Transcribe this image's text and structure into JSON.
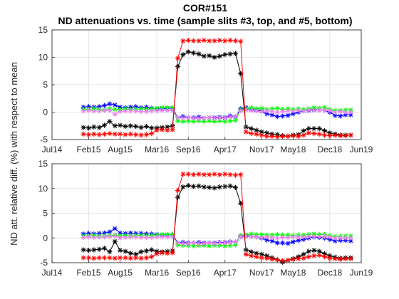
{
  "figure": {
    "title_line1": "COR#151",
    "title_line2": "ND attenuations vs. time (sample slits #3, top, and #5, bottom)",
    "ylabel": "ND att. relative diff. (%) with respect to mean"
  },
  "chart_data": [
    {
      "type": "line",
      "panel": "top",
      "x_ticks": [
        "Jul14",
        "Feb15",
        "Aug15",
        "Mar16",
        "Sep16",
        "Apr17",
        "Nov17",
        "May18",
        "Dec18",
        "Jun19"
      ],
      "xlim": [
        "2014-07",
        "2019-06"
      ],
      "ylim": [
        -5,
        15
      ],
      "y_ticks": [
        -5,
        0,
        5,
        10,
        15
      ],
      "grid": true,
      "marker": "asterisk",
      "x": [
        "2015-01",
        "2015-02",
        "2015-03",
        "2015-04",
        "2015-05",
        "2015-06",
        "2015-07",
        "2015-08",
        "2015-09",
        "2015-10",
        "2015-11",
        "2015-12",
        "2016-01",
        "2016-02",
        "2016-03",
        "2016-04",
        "2016-05",
        "2016-06",
        "2016-07",
        "2016-08",
        "2016-09",
        "2016-10",
        "2016-11",
        "2016-12",
        "2017-01",
        "2017-02",
        "2017-03",
        "2017-04",
        "2017-05",
        "2017-06",
        "2017-07",
        "2017-08",
        "2017-09",
        "2017-10",
        "2017-11",
        "2017-12",
        "2018-01",
        "2018-02",
        "2018-03",
        "2018-04",
        "2018-05",
        "2018-06",
        "2018-07",
        "2018-08",
        "2018-09",
        "2018-10",
        "2018-11",
        "2018-12",
        "2019-01",
        "2019-02",
        "2019-03",
        "2019-04"
      ],
      "series": [
        {
          "color": "#0000ff",
          "values": [
            0.9,
            1.0,
            0.9,
            1.0,
            1.2,
            1.5,
            1.3,
            0.9,
            0.8,
            0.9,
            1.0,
            0.8,
            0.9,
            0.7,
            0.6,
            0.6,
            0.7,
            0.7,
            -1.0,
            -0.8,
            -1.0,
            -1.0,
            -0.9,
            -1.1,
            -1.0,
            -1.0,
            -0.9,
            -1.0,
            -0.7,
            -0.9,
            0.6,
            0.8,
            0.5,
            0.4,
            0.2,
            -0.3,
            -0.5,
            -0.8,
            -0.7,
            -0.6,
            -0.3,
            0.0,
            0.2,
            0.3,
            0.5,
            0.4,
            0.3,
            0.0,
            -0.6,
            -0.7,
            -0.5,
            -0.5
          ]
        },
        {
          "color": "#00ff00",
          "values": [
            0.5,
            0.5,
            0.6,
            0.5,
            0.4,
            0.6,
            0.5,
            0.5,
            0.6,
            0.5,
            0.5,
            0.6,
            0.5,
            0.6,
            0.7,
            0.8,
            0.8,
            0.8,
            -1.6,
            -1.7,
            -1.6,
            -1.7,
            -1.6,
            -1.7,
            -1.6,
            -1.7,
            -1.6,
            -1.7,
            -1.6,
            -1.5,
            0.4,
            0.6,
            0.8,
            0.6,
            0.7,
            0.5,
            0.6,
            0.7,
            0.5,
            0.6,
            0.5,
            0.6,
            0.5,
            0.6,
            0.8,
            0.7,
            0.8,
            0.5,
            0.3,
            0.3,
            0.4,
            0.4
          ]
        },
        {
          "color": "#ee82ee",
          "values": [
            0.2,
            0.3,
            0.2,
            0.2,
            0.3,
            0.3,
            -0.4,
            0.1,
            0.2,
            0.2,
            0.2,
            0.1,
            0.1,
            0.2,
            0.2,
            0.3,
            0.3,
            0.3,
            -1.0,
            -1.1,
            -1.0,
            -1.1,
            -1.2,
            -1.1,
            -1.0,
            -1.1,
            -1.0,
            -1.1,
            -0.9,
            -0.8,
            0.2,
            0.4,
            0.3,
            0.2,
            0.1,
            0.2,
            0.1,
            0.0,
            0.1,
            0.2,
            0.2,
            0.3,
            0.2,
            0.4,
            0.3,
            0.4,
            0.3,
            0.3,
            0.0,
            0.1,
            0.0,
            0.0
          ]
        },
        {
          "color": "#000000",
          "values": [
            -2.8,
            -2.9,
            -2.7,
            -2.8,
            -2.4,
            -1.7,
            -2.5,
            -2.4,
            -2.6,
            -2.5,
            -2.6,
            -2.8,
            -2.6,
            -2.9,
            -2.9,
            -2.8,
            -2.7,
            -2.5,
            8.3,
            10.5,
            11.0,
            10.8,
            10.6,
            10.2,
            10.3,
            10.0,
            10.2,
            10.5,
            10.6,
            10.7,
            7.0,
            -2.7,
            -3.0,
            -3.3,
            -3.6,
            -3.8,
            -4.0,
            -4.1,
            -4.3,
            -4.4,
            -4.2,
            -4.1,
            -3.4,
            -3.0,
            -3.0,
            -3.0,
            -3.4,
            -3.8,
            -4.0,
            -4.2,
            -4.2,
            -4.2
          ]
        },
        {
          "color": "#ff0000",
          "values": [
            -4.0,
            -4.1,
            -4.0,
            -4.1,
            -4.0,
            -3.9,
            -4.0,
            -4.0,
            -4.1,
            -4.0,
            -4.1,
            -4.2,
            -4.1,
            -3.9,
            -3.3,
            -3.2,
            -3.3,
            -3.2,
            9.8,
            13.0,
            13.1,
            13.0,
            13.0,
            13.1,
            13.0,
            13.0,
            13.1,
            13.0,
            13.1,
            13.0,
            12.9,
            -3.6,
            -3.9,
            -4.0,
            -4.2,
            -4.4,
            -4.4,
            -4.5,
            -4.4,
            -4.4,
            -4.3,
            -4.4,
            -4.2,
            -3.8,
            -3.9,
            -4.0,
            -4.2,
            -4.3,
            -4.2,
            -4.3,
            -4.3,
            -4.2
          ]
        }
      ]
    },
    {
      "type": "line",
      "panel": "bottom",
      "x_ticks": [
        "Jul14",
        "Feb15",
        "Aug15",
        "Mar16",
        "Sep16",
        "Apr17",
        "Nov17",
        "May18",
        "Dec18",
        "Jun19"
      ],
      "xlim": [
        "2014-07",
        "2019-06"
      ],
      "ylim": [
        -5,
        15
      ],
      "y_ticks": [
        -5,
        0,
        5,
        10,
        15
      ],
      "grid": true,
      "marker": "asterisk",
      "x": [
        "2015-01",
        "2015-02",
        "2015-03",
        "2015-04",
        "2015-05",
        "2015-06",
        "2015-07",
        "2015-08",
        "2015-09",
        "2015-10",
        "2015-11",
        "2015-12",
        "2016-01",
        "2016-02",
        "2016-03",
        "2016-04",
        "2016-05",
        "2016-06",
        "2016-07",
        "2016-08",
        "2016-09",
        "2016-10",
        "2016-11",
        "2016-12",
        "2017-01",
        "2017-02",
        "2017-03",
        "2017-04",
        "2017-05",
        "2017-06",
        "2017-07",
        "2017-08",
        "2017-09",
        "2017-10",
        "2017-11",
        "2017-12",
        "2018-01",
        "2018-02",
        "2018-03",
        "2018-04",
        "2018-05",
        "2018-06",
        "2018-07",
        "2018-08",
        "2018-09",
        "2018-10",
        "2018-11",
        "2018-12",
        "2019-01",
        "2019-02",
        "2019-03",
        "2019-04"
      ],
      "series": [
        {
          "color": "#0000ff",
          "values": [
            0.8,
            0.9,
            0.8,
            0.9,
            1.0,
            1.2,
            1.9,
            1.0,
            0.9,
            1.0,
            0.9,
            0.9,
            0.8,
            0.8,
            0.7,
            0.6,
            0.6,
            0.7,
            -1.0,
            -0.9,
            -1.0,
            -1.0,
            -0.9,
            -1.0,
            -1.0,
            -1.0,
            -0.9,
            -0.9,
            -0.8,
            -0.8,
            0.3,
            0.5,
            0.3,
            0.2,
            0.0,
            -0.4,
            -0.6,
            -1.0,
            -1.0,
            -1.1,
            -0.8,
            -0.5,
            -0.3,
            0.0,
            0.2,
            0.1,
            0.0,
            -0.3,
            -0.6,
            -0.5,
            -0.5,
            -0.6
          ]
        },
        {
          "color": "#00ff00",
          "values": [
            0.4,
            0.4,
            0.5,
            0.4,
            0.4,
            0.5,
            0.6,
            0.4,
            0.5,
            0.4,
            0.5,
            0.5,
            0.4,
            0.5,
            0.6,
            0.7,
            0.7,
            0.7,
            -1.4,
            -1.5,
            -1.5,
            -1.6,
            -1.5,
            -1.5,
            -1.6,
            -1.5,
            -1.5,
            -1.6,
            -1.5,
            -1.4,
            0.5,
            0.6,
            0.8,
            0.7,
            0.7,
            0.6,
            0.6,
            0.7,
            0.6,
            0.6,
            0.5,
            0.6,
            0.6,
            0.7,
            0.8,
            0.7,
            0.7,
            0.5,
            0.3,
            0.3,
            0.4,
            0.4
          ]
        },
        {
          "color": "#ee82ee",
          "values": [
            0.1,
            0.2,
            0.1,
            0.2,
            0.2,
            0.3,
            0.4,
            0.0,
            0.1,
            0.2,
            0.2,
            0.1,
            0.1,
            0.1,
            0.2,
            0.2,
            0.2,
            0.2,
            -1.0,
            -1.1,
            -1.1,
            -1.0,
            -1.1,
            -1.1,
            -1.0,
            -1.1,
            -1.0,
            -1.0,
            -0.9,
            -0.8,
            0.2,
            0.3,
            0.3,
            0.2,
            0.1,
            0.2,
            0.1,
            0.0,
            0.1,
            0.1,
            0.2,
            0.2,
            0.2,
            0.3,
            0.3,
            0.3,
            0.3,
            0.2,
            0.0,
            0.0,
            0.0,
            0.0
          ]
        },
        {
          "color": "#000000",
          "values": [
            -2.4,
            -2.5,
            -2.4,
            -2.3,
            -2.1,
            -2.8,
            -0.7,
            -2.5,
            -2.7,
            -3.1,
            -3.3,
            -2.8,
            -2.6,
            -2.4,
            -2.7,
            -2.8,
            -2.7,
            -2.6,
            8.2,
            10.3,
            10.6,
            10.4,
            10.5,
            10.3,
            10.2,
            10.1,
            10.3,
            10.4,
            10.5,
            10.2,
            7.0,
            -2.4,
            -2.8,
            -3.1,
            -3.3,
            -3.6,
            -4.0,
            -4.4,
            -4.9,
            -4.5,
            -4.2,
            -3.8,
            -3.3,
            -2.7,
            -2.5,
            -2.7,
            -3.2,
            -3.6,
            -3.9,
            -4.1,
            -4.0,
            -4.0
          ]
        },
        {
          "color": "#ff0000",
          "values": [
            -4.0,
            -4.0,
            -4.1,
            -4.0,
            -4.0,
            -4.0,
            -4.1,
            -4.0,
            -4.0,
            -4.1,
            -4.0,
            -4.1,
            -4.0,
            -3.8,
            -3.2,
            -3.0,
            -3.1,
            -3.0,
            9.6,
            12.9,
            12.9,
            12.8,
            12.9,
            12.8,
            12.8,
            12.9,
            12.8,
            12.9,
            12.8,
            12.7,
            12.8,
            -3.3,
            -3.6,
            -3.8,
            -4.0,
            -4.1,
            -4.3,
            -4.4,
            -4.6,
            -4.5,
            -4.3,
            -4.2,
            -4.1,
            -3.8,
            -3.6,
            -3.5,
            -3.8,
            -4.1,
            -4.2,
            -4.3,
            -4.2,
            -4.2
          ]
        }
      ]
    }
  ]
}
